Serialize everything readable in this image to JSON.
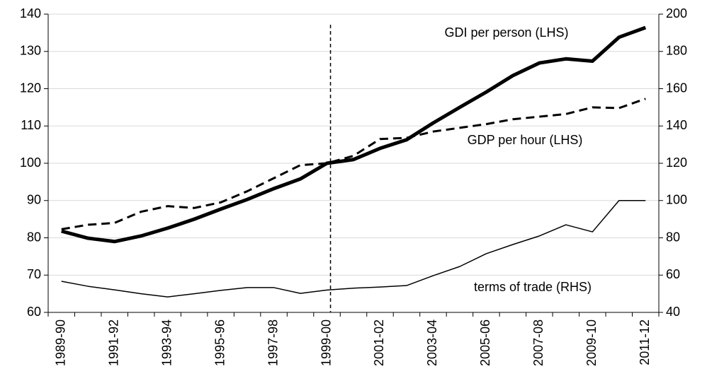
{
  "chart_data": {
    "type": "line",
    "categories": [
      "1989-90",
      null,
      "1991-92",
      null,
      "1993-94",
      null,
      "1995-96",
      null,
      "1997-98",
      null,
      "1999-00",
      null,
      "2001-02",
      null,
      "2003-04",
      null,
      "2005-06",
      null,
      "2007-08",
      null,
      "2009-10",
      null,
      "2011-12"
    ],
    "series": [
      {
        "name": "GDI per person (LHS)",
        "color": "#000000",
        "style": "solid",
        "width": 5,
        "values": [
          81.8,
          79.9,
          79.0,
          80.5,
          82.6,
          85.0,
          87.7,
          90.3,
          93.2,
          95.8,
          100,
          101,
          104,
          106.3,
          110.8,
          115,
          119.1,
          123.5,
          126.9,
          128,
          127.4,
          133.8,
          136.4
        ]
      },
      {
        "name": "GDP per hour (LHS)",
        "color": "#000000",
        "style": "dashed",
        "width": 3,
        "values": [
          82.3,
          83.5,
          84,
          87,
          88.5,
          88,
          89.5,
          92.5,
          96,
          99.5,
          100,
          102,
          106.5,
          106.8,
          108.5,
          109.5,
          110.5,
          111.8,
          112.5,
          113.2,
          115,
          114.8,
          117.3
        ]
      },
      {
        "name": "terms of trade (RHS)",
        "color": "#000000",
        "style": "solid",
        "width": 1.5,
        "axis": "y2",
        "values": [
          56.7,
          54,
          52.1,
          50,
          48.3,
          50,
          51.8,
          53.3,
          53.3,
          50.2,
          52,
          53,
          53.6,
          54.4,
          59.7,
          64.6,
          71.5,
          76.4,
          81,
          87,
          83.2,
          100,
          100
        ]
      }
    ],
    "ylim": [
      60,
      140
    ],
    "yticks": [
      60,
      70,
      80,
      90,
      100,
      110,
      120,
      130,
      140
    ],
    "y2lim": [
      40,
      200
    ],
    "y2ticks": [
      40,
      60,
      80,
      100,
      120,
      140,
      160,
      180,
      200
    ],
    "grid": true,
    "vline": "1999-00"
  }
}
